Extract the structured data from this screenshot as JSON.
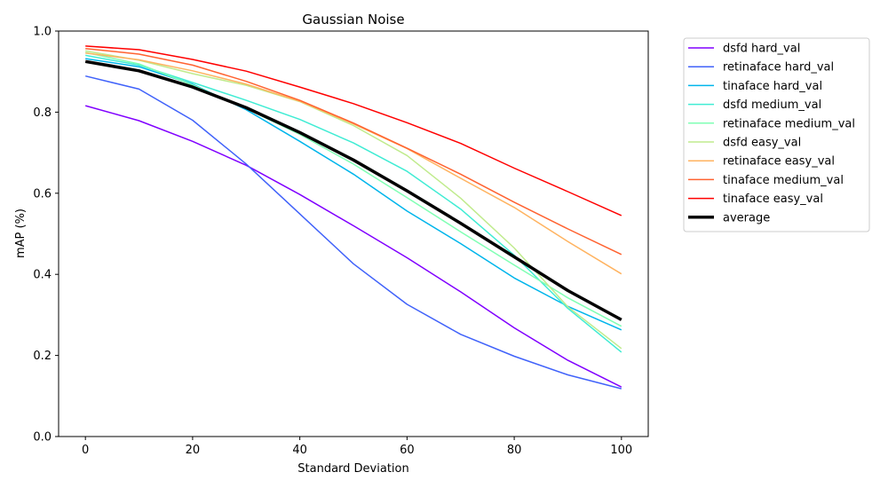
{
  "chart_data": {
    "type": "line",
    "title": "Gaussian Noise",
    "xlabel": "Standard Deviation",
    "ylabel": "mAP (%)",
    "xlim": [
      -5,
      105
    ],
    "ylim": [
      0.0,
      1.0
    ],
    "xticks": [
      0,
      20,
      40,
      60,
      80,
      100
    ],
    "yticks": [
      0.0,
      0.2,
      0.4,
      0.6,
      0.8,
      1.0
    ],
    "xtick_labels": [
      "0",
      "20",
      "40",
      "60",
      "80",
      "100"
    ],
    "ytick_labels": [
      "0.0",
      "0.2",
      "0.4",
      "0.6",
      "0.8",
      "1.0"
    ],
    "grid": false,
    "legend_position": "outside-right",
    "x": [
      0,
      10,
      20,
      30,
      40,
      50,
      60,
      70,
      80,
      90,
      100
    ],
    "series": [
      {
        "name": "dsfd hard_val",
        "color": "#8000ff",
        "width": 1.5,
        "values": [
          0.816,
          0.779,
          0.728,
          0.669,
          0.597,
          0.52,
          0.441,
          0.357,
          0.268,
          0.188,
          0.122
        ]
      },
      {
        "name": "retinaface hard_val",
        "color": "#4062fa",
        "width": 1.5,
        "values": [
          0.889,
          0.857,
          0.78,
          0.672,
          0.549,
          0.426,
          0.326,
          0.252,
          0.198,
          0.152,
          0.118
        ]
      },
      {
        "name": "tinaface hard_val",
        "color": "#00b5eb",
        "width": 1.5,
        "values": [
          0.932,
          0.912,
          0.869,
          0.806,
          0.728,
          0.647,
          0.556,
          0.476,
          0.391,
          0.321,
          0.263
        ]
      },
      {
        "name": "dsfd medium_val",
        "color": "#40ecd4",
        "width": 1.5,
        "values": [
          0.94,
          0.916,
          0.873,
          0.829,
          0.782,
          0.724,
          0.654,
          0.561,
          0.447,
          0.316,
          0.208
        ]
      },
      {
        "name": "retinaface medium_val",
        "color": "#80ffb4",
        "width": 1.5,
        "values": [
          0.947,
          0.919,
          0.867,
          0.809,
          0.745,
          0.672,
          0.589,
          0.505,
          0.423,
          0.342,
          0.272
        ]
      },
      {
        "name": "dsfd easy_val",
        "color": "#c0eb8d",
        "width": 1.5,
        "values": [
          0.951,
          0.928,
          0.895,
          0.866,
          0.826,
          0.767,
          0.693,
          0.588,
          0.465,
          0.32,
          0.217
        ]
      },
      {
        "name": "retinaface easy_val",
        "color": "#ffb360",
        "width": 1.5,
        "values": [
          0.946,
          0.929,
          0.902,
          0.869,
          0.827,
          0.771,
          0.71,
          0.637,
          0.565,
          0.481,
          0.401
        ]
      },
      {
        "name": "tinaface medium_val",
        "color": "#ff6230",
        "width": 1.5,
        "values": [
          0.957,
          0.943,
          0.916,
          0.876,
          0.829,
          0.773,
          0.711,
          0.647,
          0.578,
          0.512,
          0.449
        ]
      },
      {
        "name": "tinaface easy_val",
        "color": "#ff0000",
        "width": 1.5,
        "values": [
          0.963,
          0.954,
          0.93,
          0.901,
          0.862,
          0.821,
          0.774,
          0.723,
          0.662,
          0.604,
          0.545
        ]
      },
      {
        "name": "average",
        "color": "#000000",
        "width": 3.5,
        "values": [
          0.925,
          0.902,
          0.862,
          0.811,
          0.75,
          0.682,
          0.606,
          0.526,
          0.443,
          0.36,
          0.288
        ]
      }
    ]
  }
}
